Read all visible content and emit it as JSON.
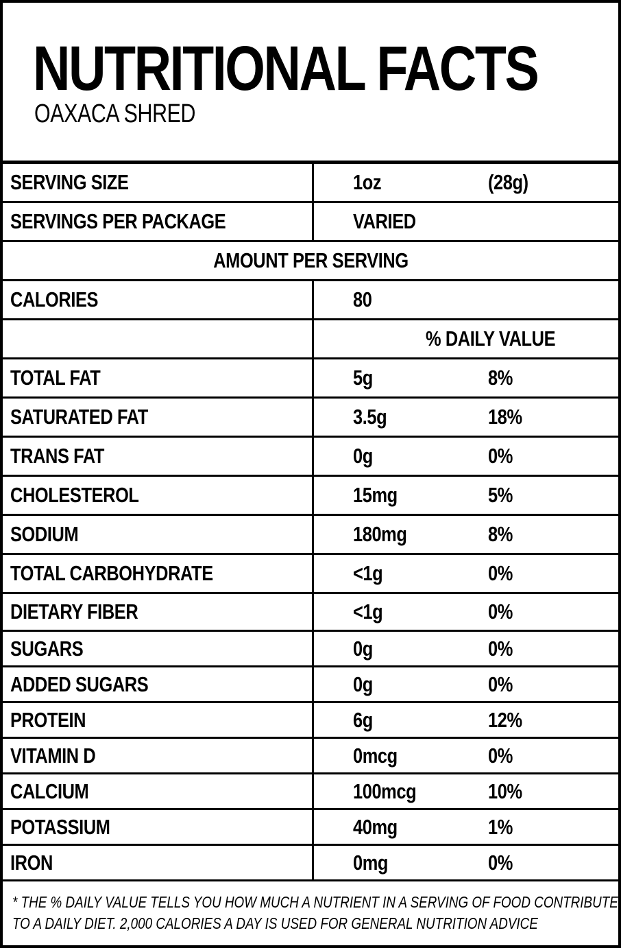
{
  "header": {
    "title": "NUTRITIONAL FACTS",
    "subtitle": "OAXACA SHRED"
  },
  "serving": {
    "size_label": "SERVING SIZE",
    "size_oz": "1oz",
    "size_g": "(28g)",
    "per_package_label": "SERVINGS PER PACKAGE",
    "per_package_value": "VARIED"
  },
  "amount_per_serving_label": "AMOUNT PER SERVING",
  "calories": {
    "label": "CALORIES",
    "value": "80"
  },
  "daily_value_header": "% DAILY VALUE",
  "nutrients": [
    {
      "name": "TOTAL FAT",
      "amount": "5g",
      "dv": "8%"
    },
    {
      "name": "SATURATED FAT",
      "amount": "3.5g",
      "dv": "18%"
    },
    {
      "name": "TRANS FAT",
      "amount": "0g",
      "dv": "0%"
    },
    {
      "name": "CHOLESTEROL",
      "amount": "15mg",
      "dv": "5%"
    },
    {
      "name": "SODIUM",
      "amount": "180mg",
      "dv": "8%"
    },
    {
      "name": "TOTAL CARBOHYDRATE",
      "amount": "<1g",
      "dv": "0%"
    },
    {
      "name": "DIETARY FIBER",
      "amount": "<1g",
      "dv": "0%"
    },
    {
      "name": "SUGARS",
      "amount": "0g",
      "dv": "0%"
    },
    {
      "name": "ADDED SUGARS",
      "amount": "0g",
      "dv": "0%"
    },
    {
      "name": "PROTEIN",
      "amount": "6g",
      "dv": "12%"
    },
    {
      "name": "VITAMIN D",
      "amount": "0mcg",
      "dv": "0%"
    },
    {
      "name": "CALCIUM",
      "amount": "100mcg",
      "dv": "10%"
    },
    {
      "name": "POTASSIUM",
      "amount": "40mg",
      "dv": "1%"
    },
    {
      "name": "IRON",
      "amount": "0mg",
      "dv": "0%"
    }
  ],
  "footnote": {
    "line1": "* THE % DAILY VALUE TELLS YOU HOW MUCH A NUTRIENT IN A SERVING OF FOOD CONTRIBUTES",
    "line2": "TO A DAILY DIET. 2,000 CALORIES A DAY IS USED FOR GENERAL NUTRITION ADVICE"
  }
}
